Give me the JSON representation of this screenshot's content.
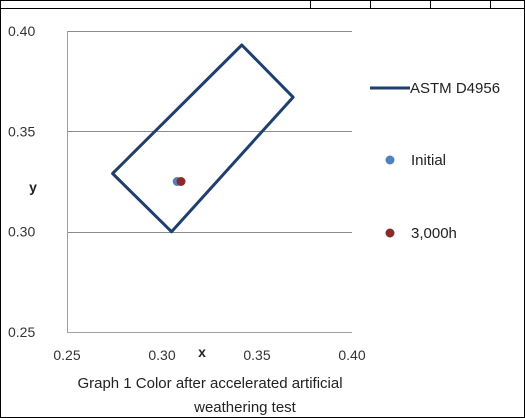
{
  "chart_data": {
    "type": "scatter",
    "xlabel": "x",
    "ylabel": "y",
    "xlim": [
      0.25,
      0.4
    ],
    "ylim": [
      0.25,
      0.4
    ],
    "x_ticks": [
      "0.25",
      "0.30",
      "0.35",
      "0.40"
    ],
    "y_ticks": [
      "0.25",
      "0.30",
      "0.35",
      "0.40"
    ],
    "y_tick_values": [
      0.25,
      0.3,
      0.35,
      0.4
    ],
    "x_tick_values": [
      0.25,
      0.3,
      0.35,
      0.4
    ],
    "grid": "horizontal",
    "legend_position": "right",
    "series": [
      {
        "name": "ASTM D4956",
        "kind": "line",
        "color": "#1f3f6e",
        "points": [
          {
            "x": 0.342,
            "y": 0.393
          },
          {
            "x": 0.369,
            "y": 0.367
          },
          {
            "x": 0.305,
            "y": 0.3
          },
          {
            "x": 0.274,
            "y": 0.329
          },
          {
            "x": 0.342,
            "y": 0.393
          }
        ]
      },
      {
        "name": "Initial",
        "kind": "point",
        "color": "#4f81bd",
        "points": [
          {
            "x": 0.308,
            "y": 0.325
          }
        ]
      },
      {
        "name": "3,000h",
        "kind": "point",
        "color": "#8b2a2a",
        "points": [
          {
            "x": 0.31,
            "y": 0.325
          }
        ]
      }
    ]
  },
  "caption": {
    "line1": "Graph 1 Color after accelerated artificial",
    "line2": "weathering test"
  },
  "colors": {
    "grid": "#8c8c8c",
    "axis": "#a0a0a0",
    "border": "#000000"
  }
}
